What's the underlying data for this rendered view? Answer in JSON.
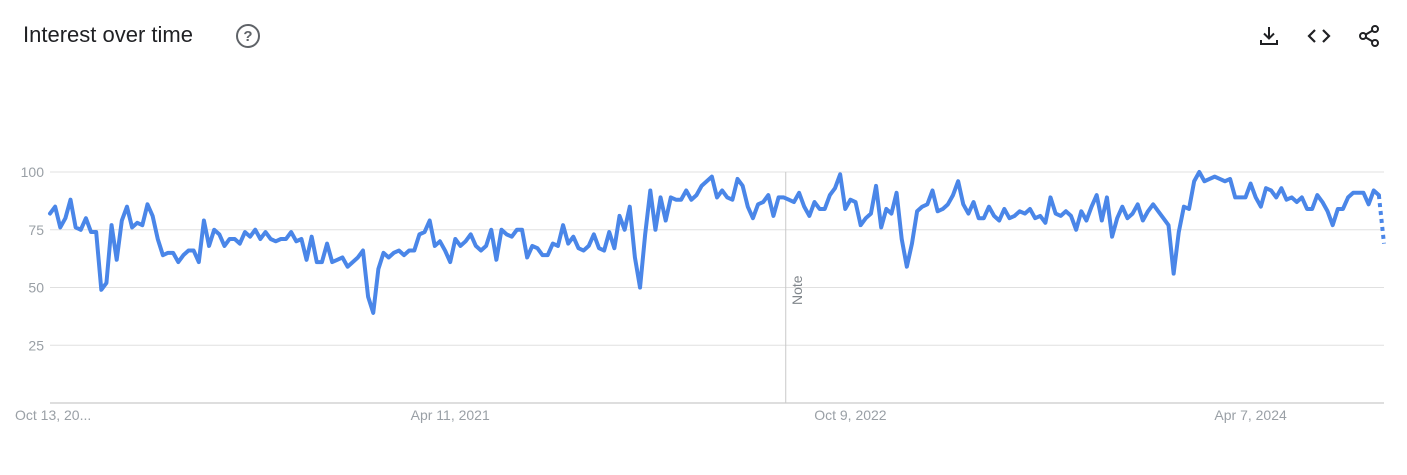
{
  "header": {
    "title": "Interest over time",
    "help_icon": "help-circle-icon",
    "actions": [
      {
        "name": "download-button",
        "icon": "download-icon"
      },
      {
        "name": "embed-button",
        "icon": "code-icon"
      },
      {
        "name": "share-button",
        "icon": "share-icon"
      }
    ]
  },
  "colors": {
    "series": "#4a86e8",
    "grid": "#e0e0e0",
    "axis": "#bdbdbd",
    "text": "#202124"
  },
  "chart_data": {
    "type": "line",
    "ylim": [
      0,
      100
    ],
    "yticks": [
      25,
      50,
      75,
      100
    ],
    "xtick_labels": [
      "Oct 13, 20...",
      "Apr 11, 2021",
      "Oct 9, 2022",
      "Apr 7, 2024"
    ],
    "annotation": {
      "text": "Note",
      "after_point": 143
    },
    "partial_last_point": true,
    "grid": true,
    "series": [
      {
        "values": [
          82,
          85,
          76,
          80,
          88,
          76,
          75,
          80,
          74,
          74,
          49,
          52,
          77,
          62,
          79,
          85,
          76,
          78,
          77,
          86,
          81,
          71,
          64,
          65,
          65,
          61,
          64,
          66,
          66,
          61,
          79,
          68,
          75,
          73,
          68,
          71,
          71,
          69,
          74,
          72,
          75,
          71,
          74,
          71,
          70,
          71,
          71,
          74,
          70,
          71,
          62,
          72,
          61,
          61,
          69,
          61,
          62,
          63,
          59,
          61,
          63,
          66,
          46,
          39,
          58,
          65,
          63,
          65,
          66,
          64,
          66,
          66,
          73,
          74,
          79,
          68,
          70,
          66,
          61,
          71,
          68,
          70,
          73,
          68,
          66,
          68,
          75,
          62,
          75,
          73,
          72,
          75,
          75,
          63,
          68,
          67,
          64,
          64,
          69,
          68,
          77,
          69,
          72,
          67,
          66,
          68,
          73,
          67,
          66,
          74,
          67,
          81,
          75,
          85,
          63,
          50,
          73,
          92,
          75,
          89,
          79,
          89,
          88,
          88,
          92,
          88,
          90,
          94,
          96,
          98,
          89,
          92,
          89,
          88,
          97,
          94,
          85,
          80,
          86,
          87,
          90,
          81,
          89,
          89,
          88,
          87,
          91,
          85,
          81,
          87,
          84,
          84,
          90,
          93,
          99,
          84,
          88,
          87,
          77,
          80,
          82,
          94,
          76,
          84,
          82,
          91,
          71,
          59,
          69,
          83,
          85,
          86,
          92,
          83,
          84,
          86,
          90,
          96,
          86,
          82,
          87,
          80,
          80,
          85,
          81,
          79,
          84,
          80,
          81,
          83,
          82,
          84,
          80,
          81,
          78,
          89,
          82,
          81,
          83,
          81,
          75,
          83,
          79,
          85,
          90,
          79,
          89,
          72,
          80,
          85,
          80,
          82,
          86,
          79,
          83,
          86,
          83,
          80,
          77,
          56,
          74,
          85,
          84,
          96,
          100,
          96,
          97,
          98,
          97,
          96,
          97,
          89,
          89,
          89,
          95,
          89,
          85,
          93,
          92,
          89,
          93,
          88,
          89,
          87,
          89,
          84,
          84,
          90,
          87,
          83,
          77,
          84,
          84,
          89,
          91,
          91,
          91,
          86,
          92,
          90,
          69
        ]
      }
    ]
  }
}
